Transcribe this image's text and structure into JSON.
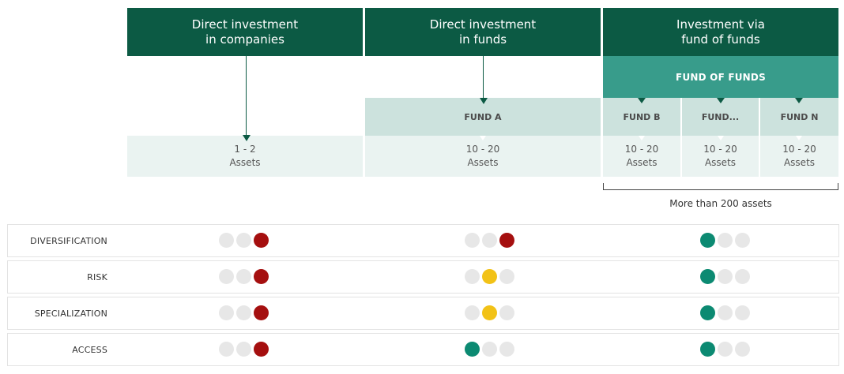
{
  "columns": [
    {
      "title_line1": "Direct investment",
      "title_line2": "in companies"
    },
    {
      "title_line1": "Direct investment",
      "title_line2": "in funds"
    },
    {
      "title_line1": "Investment via",
      "title_line2": "fund of funds"
    }
  ],
  "fund_of_funds_label": "FUND OF FUNDS",
  "funds": [
    {
      "label": "FUND A"
    },
    {
      "label": "FUND B"
    },
    {
      "label": "FUND..."
    },
    {
      "label": "FUND N"
    }
  ],
  "assets": [
    {
      "range": "1 - 2",
      "unit": "Assets"
    },
    {
      "range": "10 - 20",
      "unit": "Assets"
    },
    {
      "range": "10 - 20",
      "unit": "Assets"
    },
    {
      "range": "10 - 20",
      "unit": "Assets"
    },
    {
      "range": "10 - 20",
      "unit": "Assets"
    }
  ],
  "bracket_label": "More than 200 assets",
  "colors": {
    "dark_green": "#0c5a44",
    "mid_green": "#389c8b",
    "light_green": "#cce2dd",
    "pale_green": "#eaf3f1",
    "red": "#a50f0f",
    "yellow": "#f2c217",
    "green": "#0c8a72",
    "grey": "#e7e7e7"
  },
  "criteria": [
    {
      "label": "DIVERSIFICATION",
      "ratings": [
        [
          "grey",
          "grey",
          "red"
        ],
        [
          "grey",
          "grey",
          "red"
        ],
        [
          "green",
          "grey",
          "grey"
        ]
      ]
    },
    {
      "label": "RISK",
      "ratings": [
        [
          "grey",
          "grey",
          "red"
        ],
        [
          "grey",
          "yellow",
          "grey"
        ],
        [
          "green",
          "grey",
          "grey"
        ]
      ]
    },
    {
      "label": "SPECIALIZATION",
      "ratings": [
        [
          "grey",
          "grey",
          "red"
        ],
        [
          "grey",
          "yellow",
          "grey"
        ],
        [
          "green",
          "grey",
          "grey"
        ]
      ]
    },
    {
      "label": "ACCESS",
      "ratings": [
        [
          "grey",
          "grey",
          "red"
        ],
        [
          "green",
          "grey",
          "grey"
        ],
        [
          "green",
          "grey",
          "grey"
        ]
      ]
    }
  ]
}
